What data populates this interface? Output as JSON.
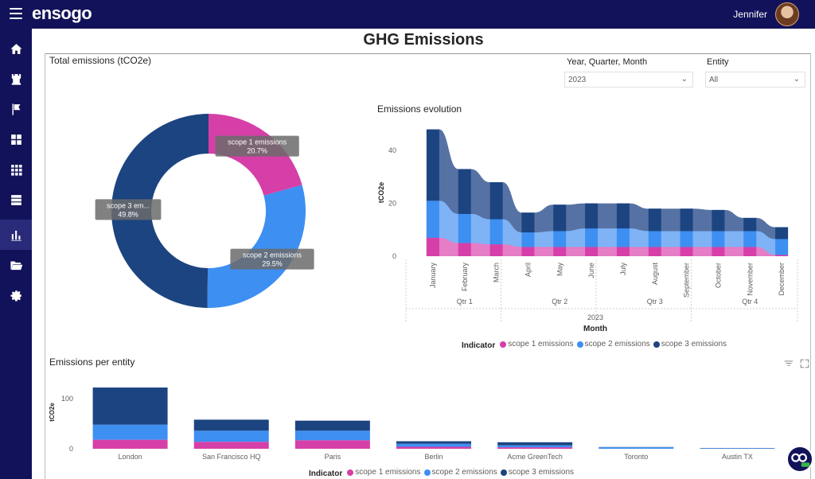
{
  "app": {
    "logo_text": "ensogo",
    "user_name": "Jennifer"
  },
  "sidebar": {
    "items": [
      {
        "name": "home-icon"
      },
      {
        "name": "castle-icon"
      },
      {
        "name": "flag-icon"
      },
      {
        "name": "dashboard-icon"
      },
      {
        "name": "apps-grid-icon"
      },
      {
        "name": "server-icon"
      },
      {
        "name": "bar-chart-icon",
        "active": true
      },
      {
        "name": "folder-open-icon"
      },
      {
        "name": "gear-icon"
      }
    ]
  },
  "page": {
    "title": "GHG Emissions"
  },
  "filters": {
    "period_label": "Year, Quarter, Month",
    "period_value": "2023",
    "entity_label": "Entity",
    "entity_value": "All"
  },
  "colors": {
    "scope1": "#d63fa7",
    "scope2": "#3d8ff2",
    "scope3": "#1c4480"
  },
  "charts": {
    "donut_title": "Total emissions (tCO2e)",
    "evolution_title": "Emissions evolution",
    "entity_title": "Emissions per entity"
  },
  "chart_data": [
    {
      "type": "pie",
      "title": "Total emissions (tCO2e)",
      "slices": [
        {
          "label": "scope 1 emissions",
          "label_text": "scope 1 emissions",
          "value": 20.7,
          "value_text": "20.7%"
        },
        {
          "label": "scope 2 emissions",
          "label_text": "scope 2 emissions",
          "value": 29.5,
          "value_text": "29.5%"
        },
        {
          "label": "scope 3 emissions",
          "label_text": "scope 3 em...",
          "value": 49.8,
          "value_text": "49.8%"
        }
      ]
    },
    {
      "type": "area",
      "title": "Emissions evolution",
      "xlabel": "Month",
      "ylabel": "tCO2e",
      "ylim": [
        0,
        50
      ],
      "yticks": [
        0,
        20,
        40
      ],
      "categories": [
        "January",
        "February",
        "March",
        "April",
        "May",
        "June",
        "July",
        "August",
        "September",
        "October",
        "November",
        "December"
      ],
      "quarters": [
        "Qtr 1",
        "Qtr 2",
        "Qtr 3",
        "Qtr 4"
      ],
      "year": "2023",
      "series": [
        {
          "name": "scope 1 emissions",
          "values": [
            7,
            5,
            4.5,
            3.5,
            3.5,
            3.5,
            3.5,
            3.5,
            3.5,
            3.5,
            3.5,
            0.5
          ]
        },
        {
          "name": "scope 2 emissions",
          "values": [
            14,
            11,
            9.5,
            5.5,
            6,
            7,
            7,
            6,
            6,
            6,
            6,
            6
          ]
        },
        {
          "name": "scope 3 emissions",
          "values": [
            27,
            17,
            14,
            7.5,
            10,
            9.5,
            9.5,
            8.5,
            8.5,
            8,
            5,
            4.5
          ]
        }
      ],
      "legend_title": "Indicator",
      "grid": false
    },
    {
      "type": "bar",
      "title": "Emissions per entity",
      "ylabel": "tCO2e",
      "ylim": [
        0,
        130
      ],
      "yticks": [
        0,
        100
      ],
      "categories": [
        "London",
        "San Francisco HQ",
        "Paris",
        "Berlin",
        "Acme GreenTech",
        "Toronto",
        "Austin TX"
      ],
      "series": [
        {
          "name": "scope 1 emissions",
          "values": [
            18,
            14,
            17,
            4,
            3,
            0,
            0
          ]
        },
        {
          "name": "scope 2 emissions",
          "values": [
            30,
            22,
            19,
            6,
            4,
            3,
            1
          ]
        },
        {
          "name": "scope 3 emissions",
          "values": [
            74,
            22,
            20,
            5,
            6,
            0.5,
            0.5
          ]
        }
      ],
      "legend_title": "Indicator",
      "grid": false
    }
  ]
}
